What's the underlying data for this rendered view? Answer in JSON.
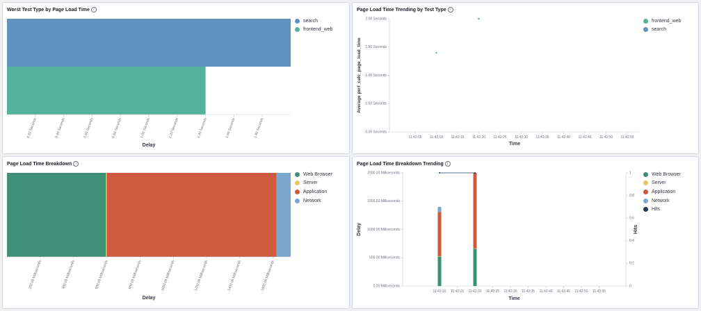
{
  "info_glyph": "i",
  "colors": {
    "search": "#6092c0",
    "frontend_web": "#54b399",
    "web_browser": "#3f8f78",
    "server": "#e7c765",
    "application": "#cd5a3f",
    "network": "#7ca8cf",
    "hits": "#1b3c5a"
  },
  "panels": {
    "worst": {
      "title": "Worst Test Type by Page Load Time",
      "xlabel": "Delay",
      "legend": [
        {
          "label": "search",
          "color": "#6092c0"
        },
        {
          "label": "frontend_web",
          "color": "#54b399"
        }
      ]
    },
    "trend": {
      "title": "Page Load Time Trending by Test Type",
      "xlabel": "Time",
      "ylabel": "Average perf_calc_page_load_time",
      "legend": [
        {
          "label": "frontend_web",
          "color": "#54b399"
        },
        {
          "label": "search",
          "color": "#6092c0"
        }
      ]
    },
    "breakdown": {
      "title": "Page Load Time Breakdown",
      "xlabel": "Delay",
      "legend": [
        {
          "label": "Web Browser",
          "color": "#3f8f78"
        },
        {
          "label": "Server",
          "color": "#e7c765"
        },
        {
          "label": "Application",
          "color": "#cd5a3f"
        },
        {
          "label": "Network",
          "color": "#7ca8cf"
        }
      ]
    },
    "breakdown_trend": {
      "title": "Page Load Time Breakdown Trending",
      "xlabel": "Time",
      "ylabel": "Delay",
      "y2label": "Hits",
      "legend": [
        {
          "label": "Web Browser",
          "color": "#3f8f78"
        },
        {
          "label": "Server",
          "color": "#e7c765"
        },
        {
          "label": "Application",
          "color": "#cd5a3f"
        },
        {
          "label": "Network",
          "color": "#7ca8cf"
        },
        {
          "label": "Hits",
          "color": "#1b3c5a"
        }
      ]
    }
  },
  "chart_data": [
    {
      "id": "worst",
      "type": "bar",
      "orientation": "horizontal",
      "title": "Worst Test Type by Page Load Time",
      "xlabel": "Delay",
      "ylabel": "",
      "categories": [
        "search",
        "frontend_web"
      ],
      "values": [
        2.0,
        1.4
      ],
      "unit": "Seconds",
      "xlim": [
        0,
        2.0
      ],
      "ticks": [
        0.2,
        0.4,
        0.6,
        0.8,
        1.0,
        1.2,
        1.4,
        1.6,
        1.8
      ],
      "tick_labels": [
        "0.20 Seconds",
        "0.40 Seconds",
        "0.60 Seconds",
        "0.80 Seconds",
        "1.00 Seconds",
        "1.20 Seconds",
        "1.40 Seconds",
        "1.60 Seconds",
        "1.80 Seconds"
      ],
      "legend_position": "top-right"
    },
    {
      "id": "trend",
      "type": "scatter",
      "title": "Page Load Time Trending by Test Type",
      "xlabel": "Time",
      "ylabel": "Average perf_calc_page_load_time",
      "x_ticks": [
        "11:42:05",
        "11:42:10",
        "11:42:15",
        "11:42:20",
        "11:42:25",
        "11:42:30",
        "11:42:35",
        "11:42:40",
        "11:42:45",
        "11:42:50",
        "11:42:55"
      ],
      "ylim": [
        0,
        2.0
      ],
      "y_ticks": [
        0,
        0.5,
        1.0,
        1.5,
        2.0
      ],
      "y_tick_labels": [
        "0.00 Seconds",
        "0.50 Seconds",
        "1.00 Seconds",
        "1.50 Seconds",
        "2.00 Seconds"
      ],
      "series": [
        {
          "name": "frontend_web",
          "color": "#54b399",
          "points": [
            {
              "x": "11:42:10",
              "y": 1.4
            }
          ]
        },
        {
          "name": "search",
          "color": "#6092c0",
          "points": [
            {
              "x": "11:42:20",
              "y": 2.0
            }
          ]
        }
      ],
      "legend_position": "top-right"
    },
    {
      "id": "breakdown",
      "type": "bar",
      "orientation": "horizontal-stacked",
      "title": "Page Load Time Breakdown",
      "xlabel": "Delay",
      "series": [
        {
          "name": "Web Browser",
          "color": "#3f8f78",
          "value": 595
        },
        {
          "name": "Server",
          "color": "#e7c765",
          "value": 5
        },
        {
          "name": "Application",
          "color": "#cd5a3f",
          "value": 1020
        },
        {
          "name": "Network",
          "color": "#7ca8cf",
          "value": 85
        }
      ],
      "xlim": [
        0,
        1705
      ],
      "ticks": [
        200,
        400,
        600,
        800,
        1000,
        1200,
        1400,
        1600
      ],
      "tick_labels": [
        "200.00 Milliseconds",
        "400.00 Milliseconds",
        "600.00 Milliseconds",
        "800.00 Milliseconds",
        "1000.00 Milliseconds",
        "1200.00 Milliseconds",
        "1400.00 Milliseconds",
        "1600.00 Milliseconds"
      ],
      "legend_position": "top-right"
    },
    {
      "id": "breakdown_trend",
      "type": "bar",
      "orientation": "vertical-stacked",
      "title": "Page Load Time Breakdown Trending",
      "xlabel": "Time",
      "ylabel": "Delay",
      "y2label": "Hits",
      "x_ticks": [
        "11:42:10",
        "11:42:15",
        "11:42:20",
        "11:42:25",
        "11:42:30",
        "11:42:35",
        "11:42:40",
        "11:42:45",
        "11:42:50",
        "11:42:55"
      ],
      "ylim": [
        0,
        2000
      ],
      "y_ticks": [
        0,
        500,
        1000,
        1500,
        2000
      ],
      "y_tick_labels": [
        "0.00 Milliseconds",
        "500.00 Milliseconds",
        "1000.00 Milliseconds",
        "1500.00 Milliseconds",
        "2000.00 Milliseconds"
      ],
      "y2lim": [
        0,
        1
      ],
      "y2_ticks": [
        0,
        0.2,
        0.4,
        0.6,
        0.8,
        1
      ],
      "y2_tick_labels": [
        "0",
        "0.2",
        "0.4",
        "0.6",
        "0.8",
        "1"
      ],
      "bars": [
        {
          "x": "11:42:10",
          "stack": [
            {
              "name": "Web Browser",
              "value": 520
            },
            {
              "name": "Server",
              "value": 5
            },
            {
              "name": "Application",
              "value": 785
            },
            {
              "name": "Network",
              "value": 90
            }
          ]
        },
        {
          "x": "11:42:20",
          "stack": [
            {
              "name": "Web Browser",
              "value": 660
            },
            {
              "name": "Server",
              "value": 5
            },
            {
              "name": "Application",
              "value": 1335
            },
            {
              "name": "Network",
              "value": 0
            }
          ]
        }
      ],
      "hits_line": [
        {
          "x": "11:42:10",
          "y": 1
        },
        {
          "x": "11:42:20",
          "y": 1
        }
      ],
      "legend_position": "top-right"
    }
  ]
}
